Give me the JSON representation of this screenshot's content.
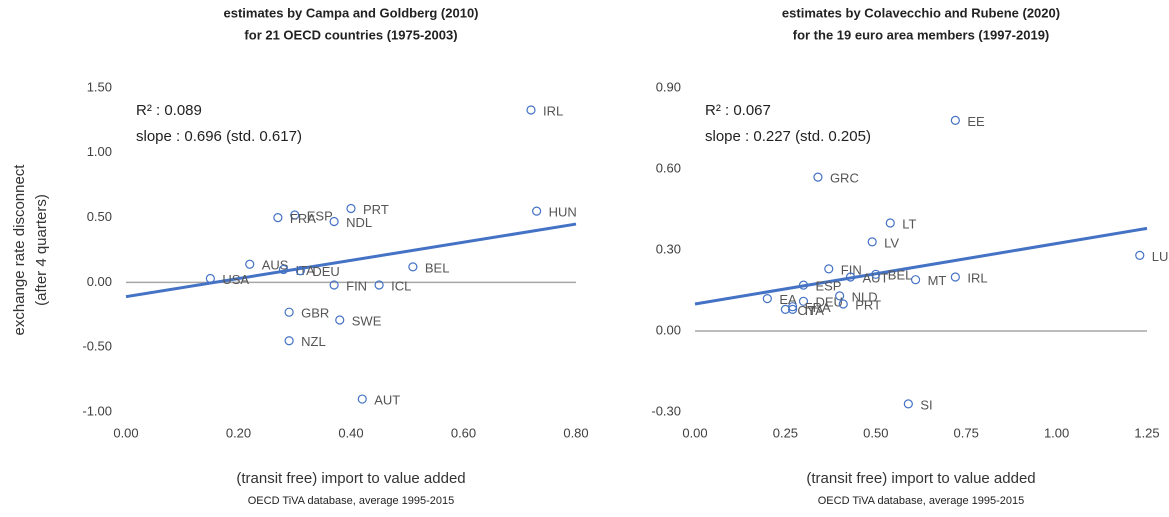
{
  "chart_data": [
    {
      "type": "scatter",
      "title": [
        "estimates by Campa and Goldberg (2010)",
        "for 21 OECD countries (1975-2003)"
      ],
      "ylabel": [
        "exchange rate disconnect",
        "(after 4 quarters)"
      ],
      "xlabel": "(transit free) import to value added",
      "source": "OECD TiVA database, average 1995-2015",
      "annotations": [
        "R² : 0.089",
        "slope : 0.696 (std. 0.617)"
      ],
      "color": "#4472c4",
      "labels": [
        "IRL",
        "HUN",
        "PRT",
        "NDL",
        "ESP",
        "FRA",
        "AUS",
        "ITA",
        "DEU",
        "USA",
        "BEL",
        "FIN",
        "ICL",
        "GBR",
        "SWE",
        "NZL",
        "AUT"
      ],
      "x": [
        0.72,
        0.73,
        0.4,
        0.37,
        0.3,
        0.27,
        0.22,
        0.28,
        0.31,
        0.15,
        0.51,
        0.37,
        0.45,
        0.29,
        0.38,
        0.29,
        0.42
      ],
      "values": [
        1.33,
        0.55,
        0.57,
        0.47,
        0.52,
        0.5,
        0.14,
        0.1,
        0.09,
        0.03,
        0.12,
        -0.02,
        -0.02,
        -0.23,
        -0.29,
        -0.45,
        -0.9
      ],
      "trendline": {
        "x": [
          0,
          0.8
        ],
        "values": [
          -0.11,
          0.45
        ]
      },
      "xlim": [
        0,
        0.8
      ],
      "ylim": [
        -1,
        1.5
      ],
      "xticks": [
        {
          "value": 0,
          "label": "0.00"
        },
        {
          "value": 0.2,
          "label": "0.20"
        },
        {
          "value": 0.4,
          "label": "0.40"
        },
        {
          "value": 0.6,
          "label": "0.60"
        },
        {
          "value": 0.8,
          "label": "0.80"
        }
      ],
      "yticks": [
        {
          "value": -1,
          "label": "-1.00"
        },
        {
          "value": -0.5,
          "label": "-0.50"
        },
        {
          "value": 0,
          "label": "0.00"
        },
        {
          "value": 0.5,
          "label": "0.50"
        },
        {
          "value": 1,
          "label": "1.00"
        },
        {
          "value": 1.5,
          "label": "1.50"
        }
      ]
    },
    {
      "type": "scatter",
      "title": [
        "estimates by Colavecchio and Rubene (2020)",
        "for the 19 euro area members (1997-2019)"
      ],
      "xlabel": "(transit free) import to value added",
      "source": "OECD TiVA database, average 1995-2015",
      "annotations": [
        "R² : 0.067",
        "slope : 0.227 (std. 0.205)"
      ],
      "color": "#4472c4",
      "labels": [
        "EE",
        "GRC",
        "LT",
        "LV",
        "LUX",
        "FIN",
        "AUT",
        "BEL",
        "IRL",
        "MT",
        "ESP",
        "NLD",
        "EA",
        "DEU",
        "PRT",
        "FRA",
        "CY",
        "ITA",
        "SI"
      ],
      "x": [
        0.72,
        0.34,
        0.54,
        0.49,
        1.23,
        0.37,
        0.43,
        0.5,
        0.72,
        0.61,
        0.3,
        0.4,
        0.2,
        0.3,
        0.41,
        0.27,
        0.25,
        0.27,
        0.59
      ],
      "values": [
        0.78,
        0.57,
        0.4,
        0.33,
        0.28,
        0.23,
        0.2,
        0.21,
        0.2,
        0.19,
        0.17,
        0.13,
        0.12,
        0.11,
        0.1,
        0.09,
        0.08,
        0.08,
        -0.27
      ],
      "trendline": {
        "x": [
          0,
          1.25
        ],
        "values": [
          0.1,
          0.38
        ]
      },
      "xlim": [
        0,
        1.25
      ],
      "ylim": [
        -0.3,
        0.9
      ],
      "xticks": [
        {
          "value": 0,
          "label": "0.00"
        },
        {
          "value": 0.25,
          "label": "0.25"
        },
        {
          "value": 0.5,
          "label": "0.50"
        },
        {
          "value": 0.75,
          "label": "0.75"
        },
        {
          "value": 1,
          "label": "1.00"
        },
        {
          "value": 1.25,
          "label": "1.25"
        }
      ],
      "yticks": [
        {
          "value": -0.3,
          "label": "-0.30"
        },
        {
          "value": 0,
          "label": "0.00"
        },
        {
          "value": 0.3,
          "label": "0.30"
        },
        {
          "value": 0.6,
          "label": "0.60"
        },
        {
          "value": 0.9,
          "label": "0.90"
        }
      ]
    }
  ]
}
